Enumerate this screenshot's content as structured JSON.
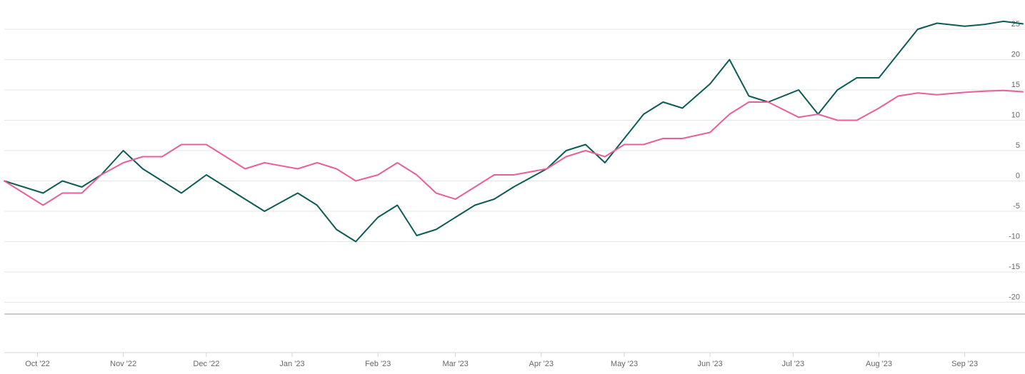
{
  "chart_data": {
    "type": "line",
    "title": "",
    "xlabel": "",
    "ylabel": "",
    "ylim": [
      -22,
      25
    ],
    "yticks": [
      25,
      20,
      15,
      10,
      5,
      0,
      -5,
      -10,
      -15,
      -20
    ],
    "x_ticks": [
      "Oct '22",
      "Nov '22",
      "Dec '22",
      "Jan '23",
      "Feb '23",
      "Mar '23",
      "Apr '23",
      "May '23",
      "Jun '23",
      "Jul '23",
      "Aug '23",
      "Sep '23"
    ],
    "grid": true,
    "legend": "none",
    "x": [
      "2022-09-19",
      "2022-10-03",
      "2022-10-10",
      "2022-10-17",
      "2022-10-24",
      "2022-11-01",
      "2022-11-08",
      "2022-11-15",
      "2022-11-22",
      "2022-12-01",
      "2022-12-08",
      "2022-12-15",
      "2022-12-22",
      "2023-01-03",
      "2023-01-10",
      "2023-01-17",
      "2023-01-24",
      "2023-02-01",
      "2023-02-08",
      "2023-02-15",
      "2023-02-22",
      "2023-03-01",
      "2023-03-08",
      "2023-03-15",
      "2023-03-22",
      "2023-04-03",
      "2023-04-10",
      "2023-04-17",
      "2023-04-24",
      "2023-05-01",
      "2023-05-08",
      "2023-05-15",
      "2023-05-22",
      "2023-06-01",
      "2023-06-08",
      "2023-06-15",
      "2023-06-22",
      "2023-07-03",
      "2023-07-10",
      "2023-07-17",
      "2023-07-24",
      "2023-08-01",
      "2023-08-08",
      "2023-08-15",
      "2023-08-22",
      "2023-09-01",
      "2023-09-08",
      "2023-09-15",
      "2023-09-22"
    ],
    "series": [
      {
        "color": "#0d5c55",
        "values": [
          0,
          -2,
          0,
          -1,
          1,
          5,
          2,
          0,
          -2,
          1,
          -1,
          -3,
          -5,
          -2,
          -4,
          -8,
          -10,
          -6,
          -4,
          -9,
          -8,
          -6,
          -4,
          -3,
          -1,
          2,
          5,
          6,
          3,
          7,
          11,
          13,
          12,
          16,
          20,
          14,
          13,
          15,
          11,
          15,
          17,
          17,
          21,
          25,
          26,
          25.5,
          25.8,
          26.3,
          25.9
        ]
      },
      {
        "color": "#e8609a",
        "values": [
          0,
          -4,
          -2,
          -2,
          1,
          3,
          4,
          4,
          6,
          6,
          4,
          2,
          3,
          2,
          3,
          2,
          0,
          1,
          3,
          1,
          -2,
          -3,
          -1,
          1,
          1,
          2,
          4,
          5,
          4,
          6,
          6,
          7,
          7,
          8,
          11,
          13,
          13,
          10.5,
          11,
          10,
          10,
          12,
          14,
          14.5,
          14.2,
          14.6,
          14.8,
          14.9,
          14.7
        ]
      }
    ]
  }
}
